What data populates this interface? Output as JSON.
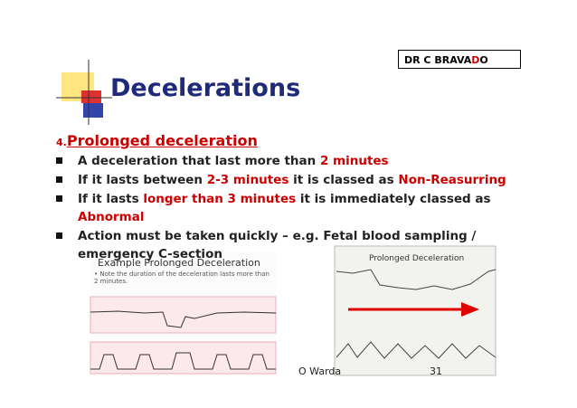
{
  "header": {
    "author_box": [
      {
        "text": "DR C BRAVA",
        "color": "#000000"
      },
      {
        "text": "D",
        "color": "#cc0000"
      },
      {
        "text": "O",
        "color": "#000000"
      }
    ],
    "title": "Decelerations",
    "title_color": "#1f2a7a"
  },
  "section": {
    "number": "4.",
    "heading": "Prolonged deceleration",
    "color": "#cc0000"
  },
  "bullets": [
    [
      {
        "text": "A deceleration that last more than ",
        "color": "#222222"
      },
      {
        "text": "2 minutes",
        "color": "#cc0000"
      }
    ],
    [
      {
        "text": "If it lasts between ",
        "color": "#222222"
      },
      {
        "text": "2-3 minutes",
        "color": "#cc0000"
      },
      {
        "text": " it is classed as ",
        "color": "#222222"
      },
      {
        "text": "Non-Reasurring",
        "color": "#cc0000"
      }
    ],
    [
      {
        "text": "If it lasts ",
        "color": "#222222"
      },
      {
        "text": "longer than 3 minutes",
        "color": "#cc0000"
      },
      {
        "text": " it is immediately classed as ",
        "color": "#222222"
      },
      {
        "text": "Abnormal",
        "color": "#cc0000"
      }
    ],
    [
      {
        "text": "Action must be taken quickly – e.g. Fetal blood sampling / emergency C-section",
        "color": "#222222"
      }
    ]
  ],
  "images": {
    "left": {
      "title": "Example Prolonged Deceleration",
      "note": "• Note the duration of the deceleration lasts more than 2 minutes."
    },
    "right": {
      "title": "Prolonged Deceleration"
    }
  },
  "footer": {
    "author": "O Warda",
    "page": "31"
  }
}
